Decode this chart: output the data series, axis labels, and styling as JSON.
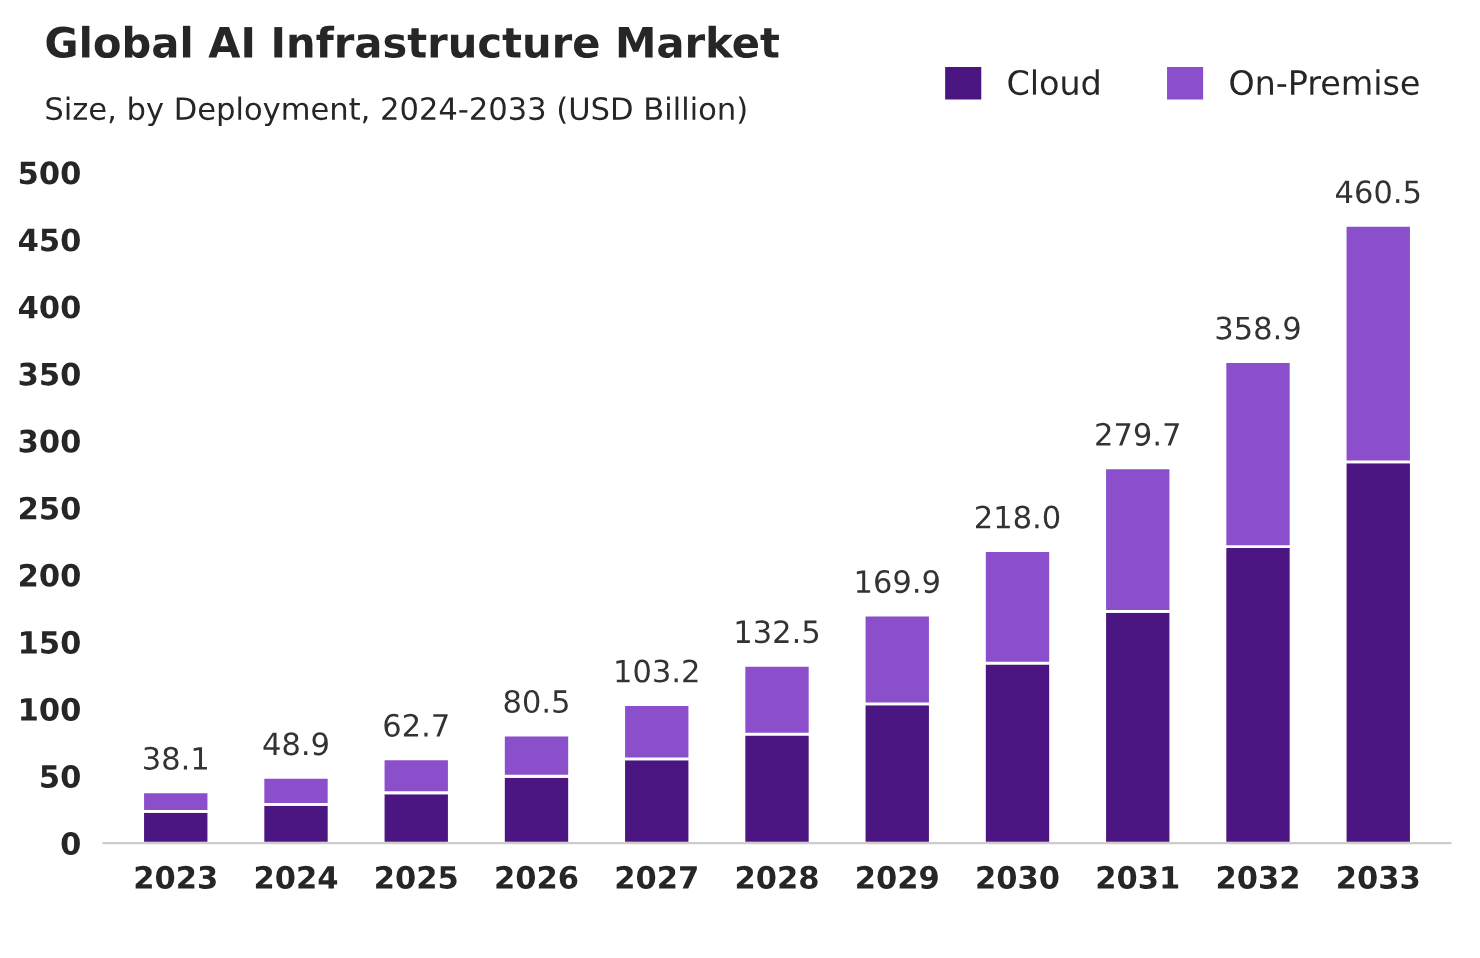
{
  "chart_data": {
    "type": "bar",
    "title": "Global AI Infrastructure Market",
    "subtitle": "Size, by Deployment, 2024-2033 (USD Billion)",
    "categories": [
      "2023",
      "2024",
      "2025",
      "2026",
      "2027",
      "2028",
      "2029",
      "2030",
      "2031",
      "2032",
      "2033"
    ],
    "stacked": true,
    "series": [
      {
        "name": "Cloud",
        "color": "#4b1681",
        "values": [
          23.6,
          28.8,
          37.5,
          49.8,
          62.7,
          81.2,
          103.8,
          134.1,
          172.7,
          221.0,
          284.2
        ]
      },
      {
        "name": "On-Premise",
        "color": "#8b4fcc",
        "values": [
          14.5,
          20.1,
          25.2,
          30.7,
          40.5,
          51.3,
          66.1,
          83.9,
          107.0,
          137.9,
          176.3
        ]
      }
    ],
    "totals": [
      "38.1",
      "48.9",
      "62.7",
      "80.5",
      "103.2",
      "132.5",
      "169.9",
      "218.0",
      "279.7",
      "358.9",
      "460.5"
    ],
    "ylim": [
      0,
      500
    ],
    "yticks": [
      0,
      50,
      100,
      150,
      200,
      250,
      300,
      350,
      400,
      450,
      500
    ],
    "grid": false,
    "legend": "top right"
  }
}
